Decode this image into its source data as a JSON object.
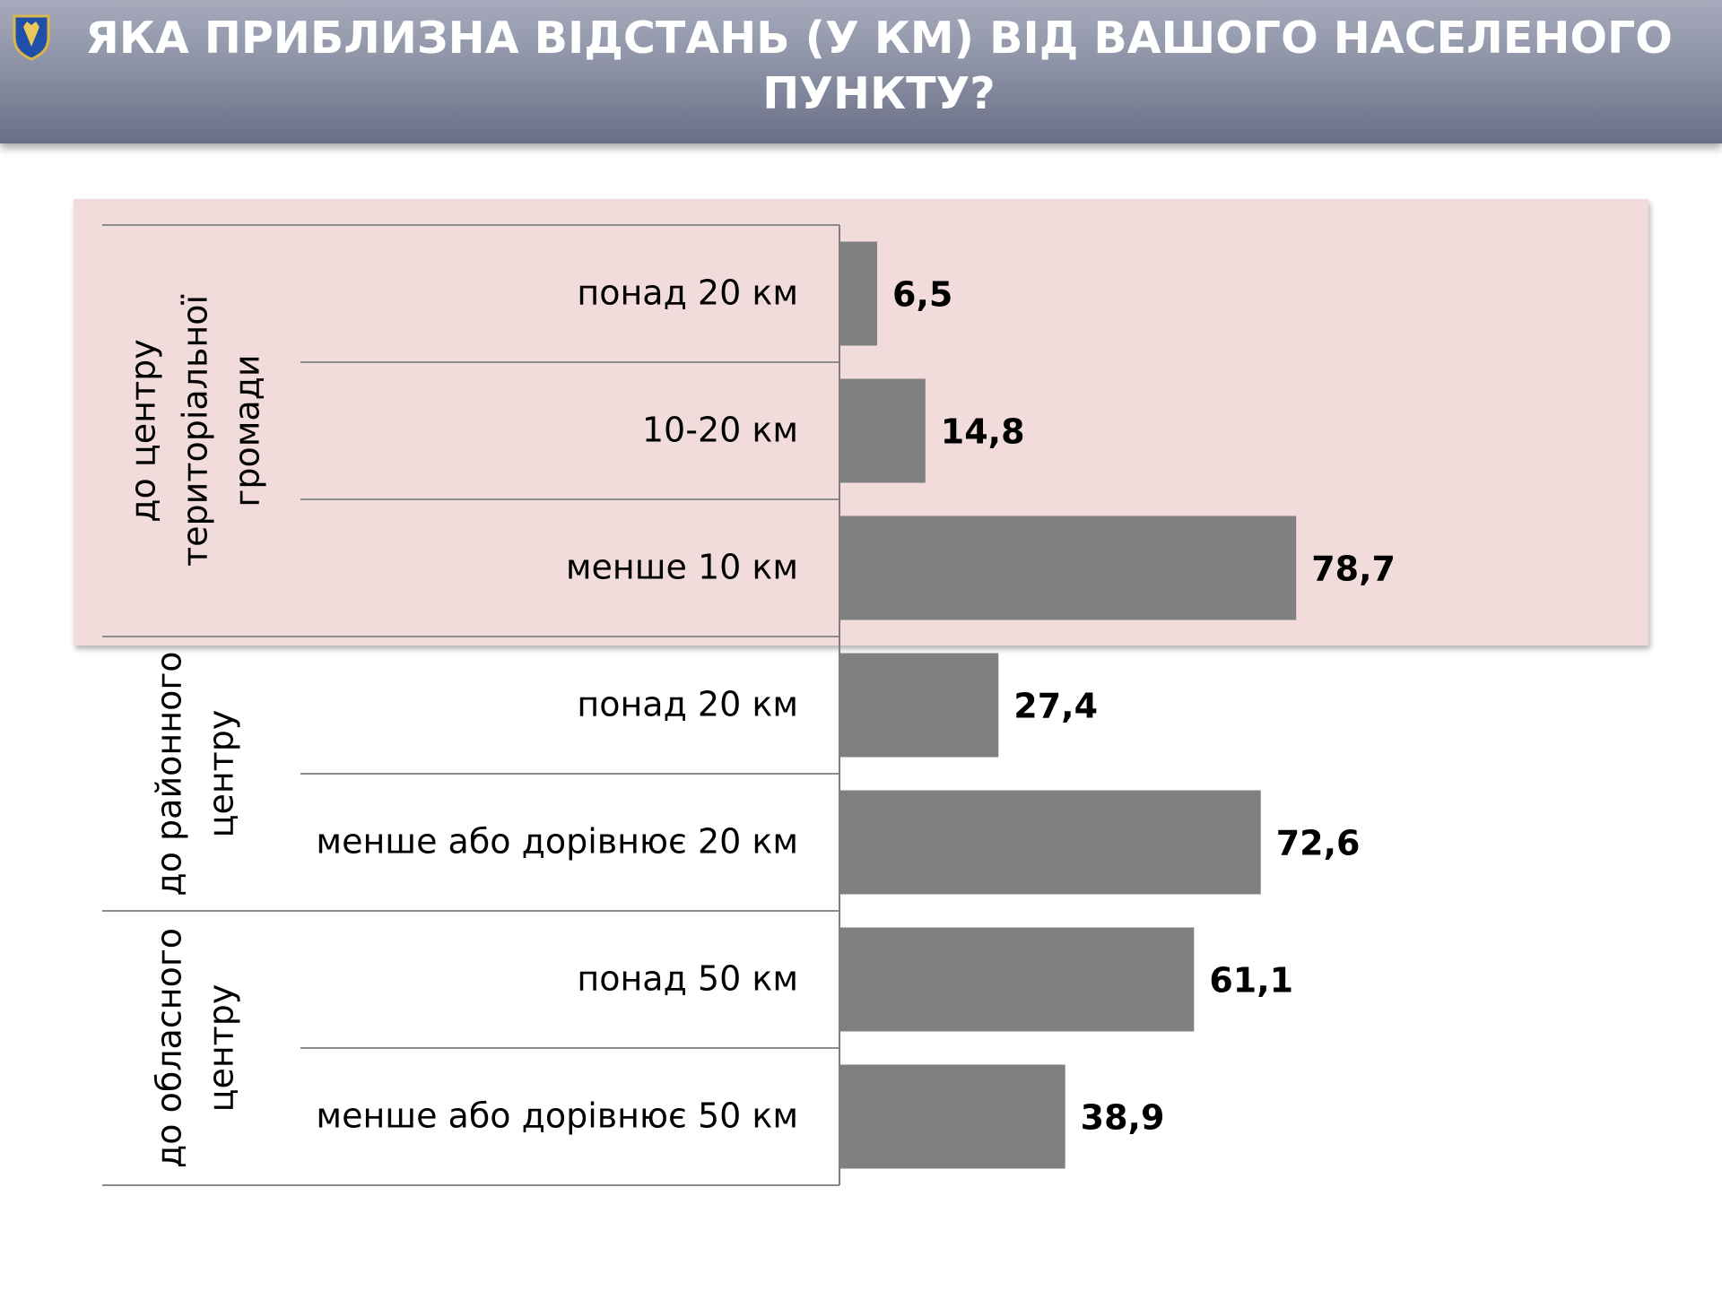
{
  "header": {
    "title": "ЯКА ПРИБЛИЗНА ВІДСТАНЬ (У КМ) ВІД ВАШОГО НАСЕЛЕНОГО ПУНКТУ?",
    "logo_icon": "lviv-coat-of-arms-icon"
  },
  "colors": {
    "bar": "#808080",
    "highlight": "#f2dcdb",
    "header_top": "#a6aabb",
    "header_bottom": "#6a6f86",
    "title_text": "#ffffff"
  },
  "chart_data": {
    "type": "bar",
    "orientation": "horizontal",
    "title": "",
    "xlabel": "",
    "ylabel": "",
    "xlim": [
      0,
      100
    ],
    "grid": false,
    "legend": "none",
    "highlighted_group": "до центру територіальної громади",
    "groups": [
      {
        "name": "до центру територіальної громади",
        "label_lines": [
          "до центру",
          "територіальної",
          "громади"
        ],
        "categories": [
          "понад 20 км",
          "10-20 км",
          "менше 10 км"
        ],
        "values": [
          6.5,
          14.8,
          78.7
        ],
        "value_labels": [
          "6,5",
          "14,8",
          "78,7"
        ]
      },
      {
        "name": "до районного центру",
        "label_lines": [
          "до районного",
          "центру"
        ],
        "categories": [
          "понад 20 км",
          "менше або дорівнює 20 км"
        ],
        "values": [
          27.4,
          72.6
        ],
        "value_labels": [
          "27,4",
          "72,6"
        ]
      },
      {
        "name": "до обласного центру",
        "label_lines": [
          "до обласного",
          "центру"
        ],
        "categories": [
          "понад 50 км",
          "менше або дорівнює 50 км"
        ],
        "values": [
          61.1,
          38.9
        ],
        "value_labels": [
          "61,1",
          "38,9"
        ]
      }
    ]
  }
}
